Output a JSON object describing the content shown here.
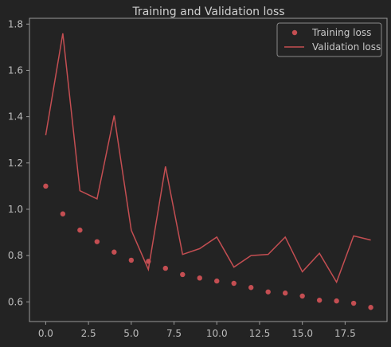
{
  "chart_data": {
    "type": "line",
    "title": "Training and Validation loss",
    "xlabel": "",
    "ylabel": "",
    "xlim": [
      -0.95,
      19.95
    ],
    "ylim": [
      0.515,
      1.825
    ],
    "x_ticks": [
      0.0,
      2.5,
      5.0,
      7.5,
      10.0,
      12.5,
      15.0,
      17.5
    ],
    "x_tick_labels": [
      "0.0",
      "2.5",
      "5.0",
      "7.5",
      "10.0",
      "12.5",
      "15.0",
      "17.5"
    ],
    "y_ticks": [
      0.6,
      0.8,
      1.0,
      1.2,
      1.4,
      1.6,
      1.8
    ],
    "y_tick_labels": [
      "0.6",
      "0.8",
      "1.0",
      "1.2",
      "1.4",
      "1.6",
      "1.8"
    ],
    "legend_position": "top-right",
    "grid": false,
    "x": [
      0,
      1,
      2,
      3,
      4,
      5,
      6,
      7,
      8,
      9,
      10,
      11,
      12,
      13,
      14,
      15,
      16,
      17,
      18,
      19
    ],
    "series": [
      {
        "name": "Training loss",
        "style": "markers",
        "color": "#c44e52",
        "values": [
          1.1,
          0.98,
          0.91,
          0.86,
          0.815,
          0.78,
          0.775,
          0.745,
          0.718,
          0.703,
          0.69,
          0.68,
          0.662,
          0.643,
          0.638,
          0.625,
          0.607,
          0.604,
          0.594,
          0.576
        ]
      },
      {
        "name": "Validation loss",
        "style": "line",
        "color": "#c44e52",
        "values": [
          1.32,
          1.76,
          1.08,
          1.045,
          1.405,
          0.91,
          0.74,
          1.185,
          0.805,
          0.83,
          0.88,
          0.75,
          0.8,
          0.805,
          0.88,
          0.73,
          0.81,
          0.685,
          0.885,
          0.867
        ]
      }
    ]
  }
}
